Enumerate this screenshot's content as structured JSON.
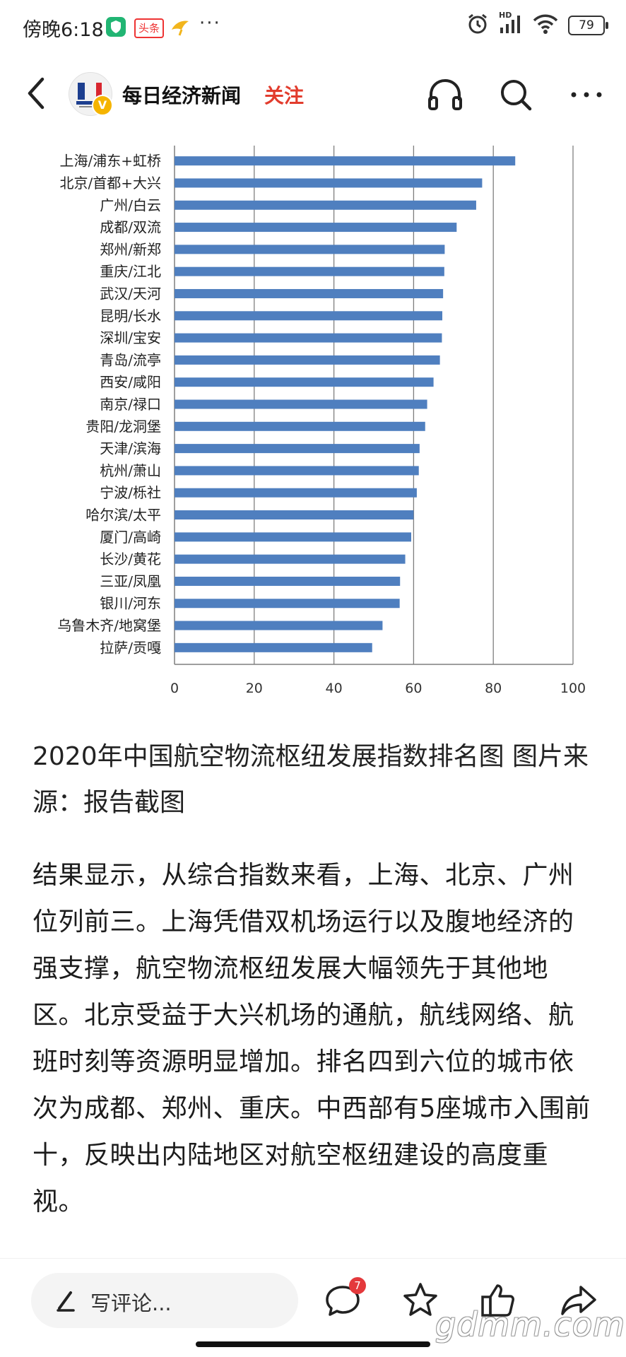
{
  "status_bar": {
    "time": "傍晚6:18",
    "app_badge": "头条",
    "network": "HD",
    "battery": "79"
  },
  "nav": {
    "channel_name": "每日经济新闻",
    "follow_label": "关注",
    "verified_mark": "V"
  },
  "chart_data": {
    "type": "bar",
    "orientation": "horizontal",
    "categories": [
      "上海/浦东+虹桥",
      "北京/首都+大兴",
      "广州/白云",
      "成都/双流",
      "郑州/新郑",
      "重庆/江北",
      "武汉/天河",
      "昆明/长水",
      "深圳/宝安",
      "青岛/流亭",
      "西安/咸阳",
      "南京/禄口",
      "贵阳/龙洞堡",
      "天津/滨海",
      "杭州/萧山",
      "宁波/栎社",
      "哈尔滨/太平",
      "厦门/高崎",
      "长沙/黄花",
      "三亚/凤凰",
      "银川/河东",
      "乌鲁木齐/地窝堡",
      "拉萨/贡嘎"
    ],
    "values": [
      85.5,
      77.2,
      75.7,
      70.8,
      67.8,
      67.7,
      67.4,
      67.2,
      67.1,
      66.6,
      65.0,
      63.4,
      62.9,
      61.5,
      61.3,
      60.8,
      60.0,
      59.4,
      57.9,
      56.6,
      56.5,
      52.2,
      49.6
    ],
    "xticks": [
      "0",
      "20",
      "40",
      "60",
      "80",
      "100"
    ],
    "xlim": [
      0,
      100
    ],
    "grid": true,
    "bar_color": "#4f7fbf",
    "title": "",
    "xlabel": "",
    "ylabel": ""
  },
  "caption": "2020年中国航空物流枢纽发展指数排名图 图片来源：报告截图",
  "body": "结果显示，从综合指数来看，上海、北京、广州位列前三。上海凭借双机场运行以及腹地经济的强支撑，航空物流枢纽发展大幅领先于其他地区。北京受益于大兴机场的通航，航线网络、航班时刻等资源明显增加。排名四到六位的城市依次为成都、郑州、重庆。中西部有5座城市入围前十，反映出内陆地区对航空枢纽建设的高度重视。",
  "bottom_bar": {
    "comment_placeholder": "写评论...",
    "comment_count": "7",
    "watermark": "gdmm.com"
  },
  "colors": {
    "accent": "#e23c2d",
    "bar": "#4f7fbf"
  }
}
